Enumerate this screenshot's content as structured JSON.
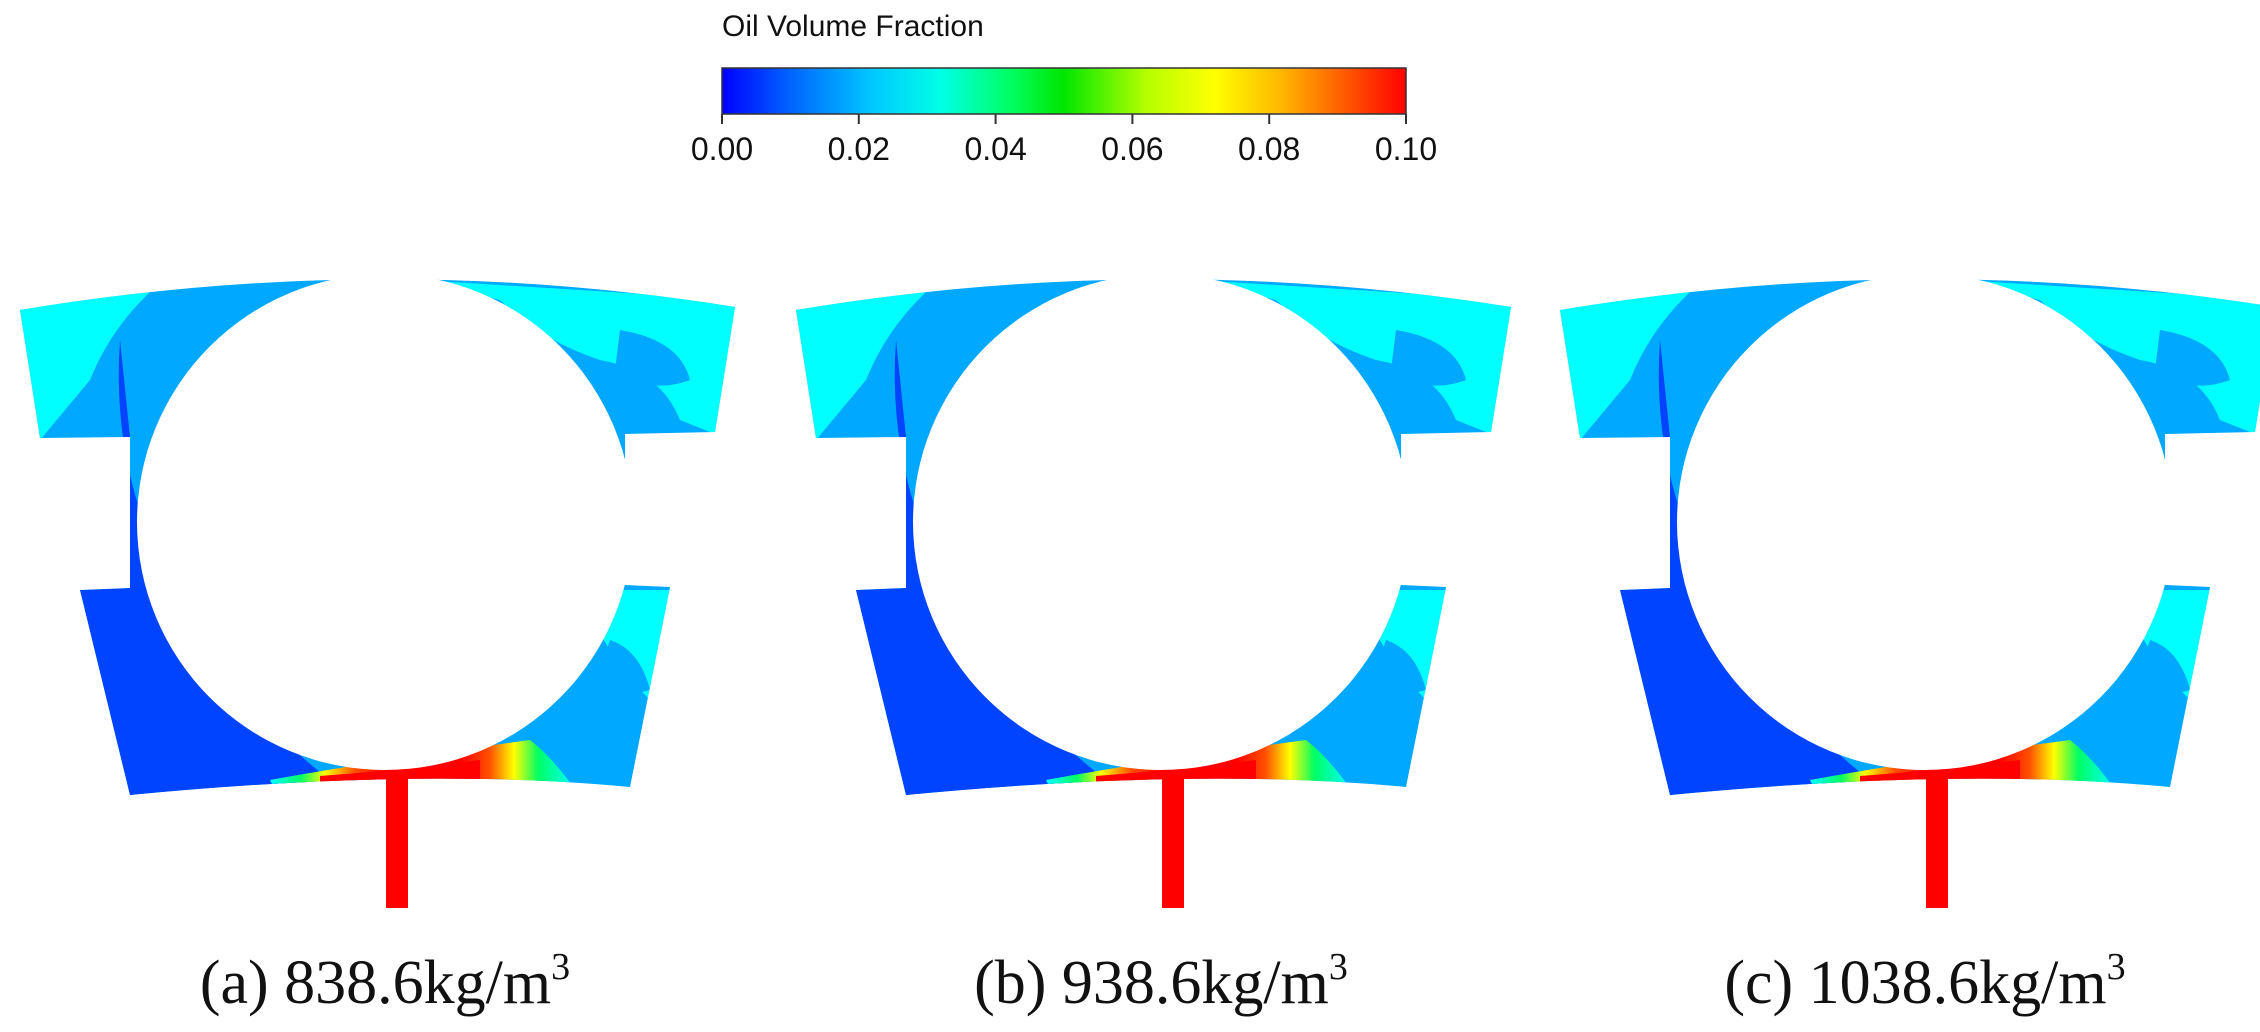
{
  "colorbar": {
    "title": "Oil Volume Fraction",
    "ticks": [
      "0.00",
      "0.02",
      "0.04",
      "0.06",
      "0.08",
      "0.10"
    ],
    "min": 0.0,
    "max": 0.1,
    "colors": [
      "#0000ff",
      "#0064ff",
      "#00c8ff",
      "#00ffe6",
      "#00ff64",
      "#00e600",
      "#b4ff00",
      "#ffff00",
      "#ffb400",
      "#ff5000",
      "#ff0000"
    ]
  },
  "palette": {
    "deep_blue": "#0044ff",
    "mid_blue": "#00a8ff",
    "cyan": "#00ffff",
    "red": "#ff0000",
    "background": "#ffffff"
  },
  "panels": [
    {
      "caption_main": "(a) 838.6kg/m",
      "caption_sup": "3"
    },
    {
      "caption_main": "(b) 938.6kg/m",
      "caption_sup": "3"
    },
    {
      "caption_main": "(c) 1038.6kg/m",
      "caption_sup": "3"
    }
  ]
}
